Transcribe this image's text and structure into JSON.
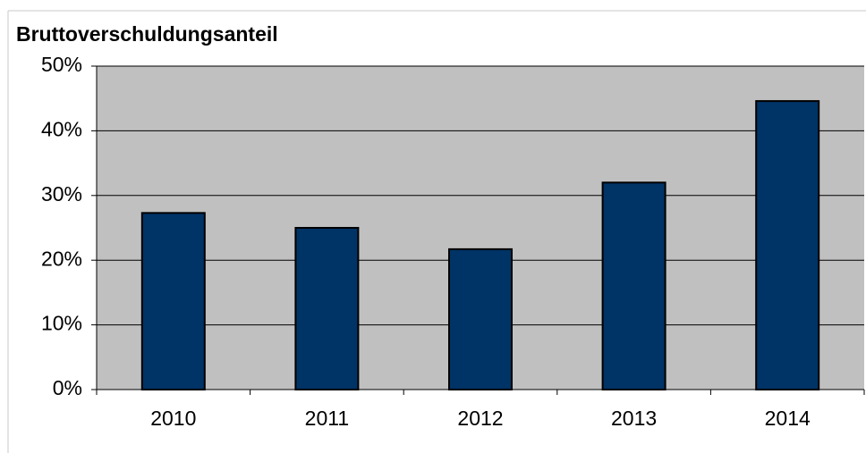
{
  "chart_data": {
    "type": "bar",
    "title": "Bruttoverschuldungsanteil",
    "categories": [
      "2010",
      "2011",
      "2012",
      "2013",
      "2014"
    ],
    "values": [
      27.3,
      25.0,
      21.7,
      32.0,
      44.6
    ],
    "color": "#003366",
    "ylim": [
      0,
      50
    ],
    "yticks": [
      {
        "value": 0,
        "label": "0%"
      },
      {
        "value": 10,
        "label": "10%"
      },
      {
        "value": 20,
        "label": "20%"
      },
      {
        "value": 30,
        "label": "30%"
      },
      {
        "value": 40,
        "label": "40%"
      },
      {
        "value": 50,
        "label": "50%"
      }
    ],
    "grid": true
  }
}
